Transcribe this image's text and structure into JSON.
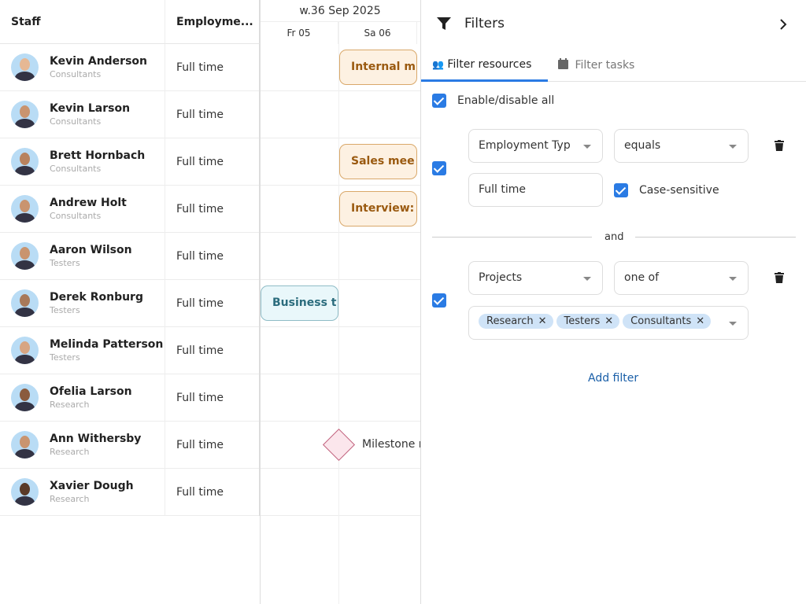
{
  "grid": {
    "headers": {
      "staff": "Staff",
      "employment": "Employme...",
      "week": "w.36 Sep 2025",
      "days": [
        "Fr 05",
        "Sa 06"
      ]
    },
    "rows": [
      {
        "name": "Kevin Anderson",
        "group": "Consultants",
        "employment": "Full time"
      },
      {
        "name": "Kevin Larson",
        "group": "Consultants",
        "employment": "Full time"
      },
      {
        "name": "Brett Hornbach",
        "group": "Consultants",
        "employment": "Full time"
      },
      {
        "name": "Andrew Holt",
        "group": "Consultants",
        "employment": "Full time"
      },
      {
        "name": "Aaron Wilson",
        "group": "Testers",
        "employment": "Full time"
      },
      {
        "name": "Derek Ronburg",
        "group": "Testers",
        "employment": "Full time"
      },
      {
        "name": "Melinda Patterson",
        "group": "Testers",
        "employment": "Full time"
      },
      {
        "name": "Ofelia Larson",
        "group": "Research",
        "employment": "Full time"
      },
      {
        "name": "Ann Withersby",
        "group": "Research",
        "employment": "Full time"
      },
      {
        "name": "Xavier Dough",
        "group": "Research",
        "employment": "Full time"
      }
    ],
    "events": [
      {
        "label": "Internal m",
        "color": "#fdf1e2"
      },
      {
        "label": "Sales mee",
        "color": "#fdf1e2"
      },
      {
        "label": "Interview:",
        "color": "#fdf1e2"
      },
      {
        "label": "Business t",
        "color": "#e9f7fa"
      }
    ],
    "milestone": {
      "label": "Milestone r",
      "color": "#fbe6ec"
    }
  },
  "filters": {
    "title": "Filters",
    "tabs": [
      "Filter resources",
      "Filter tasks"
    ],
    "enable_all": "Enable/disable all",
    "filter1": {
      "field": "Employment Typ",
      "operator": "equals",
      "value": "Full time",
      "case_sensitive": "Case-sensitive"
    },
    "joiner": "and",
    "filter2": {
      "field": "Projects",
      "operator": "one of",
      "chips": [
        "Research",
        "Testers",
        "Consultants"
      ]
    },
    "add_filter": "Add filter",
    "accent": "#2a7be4"
  }
}
